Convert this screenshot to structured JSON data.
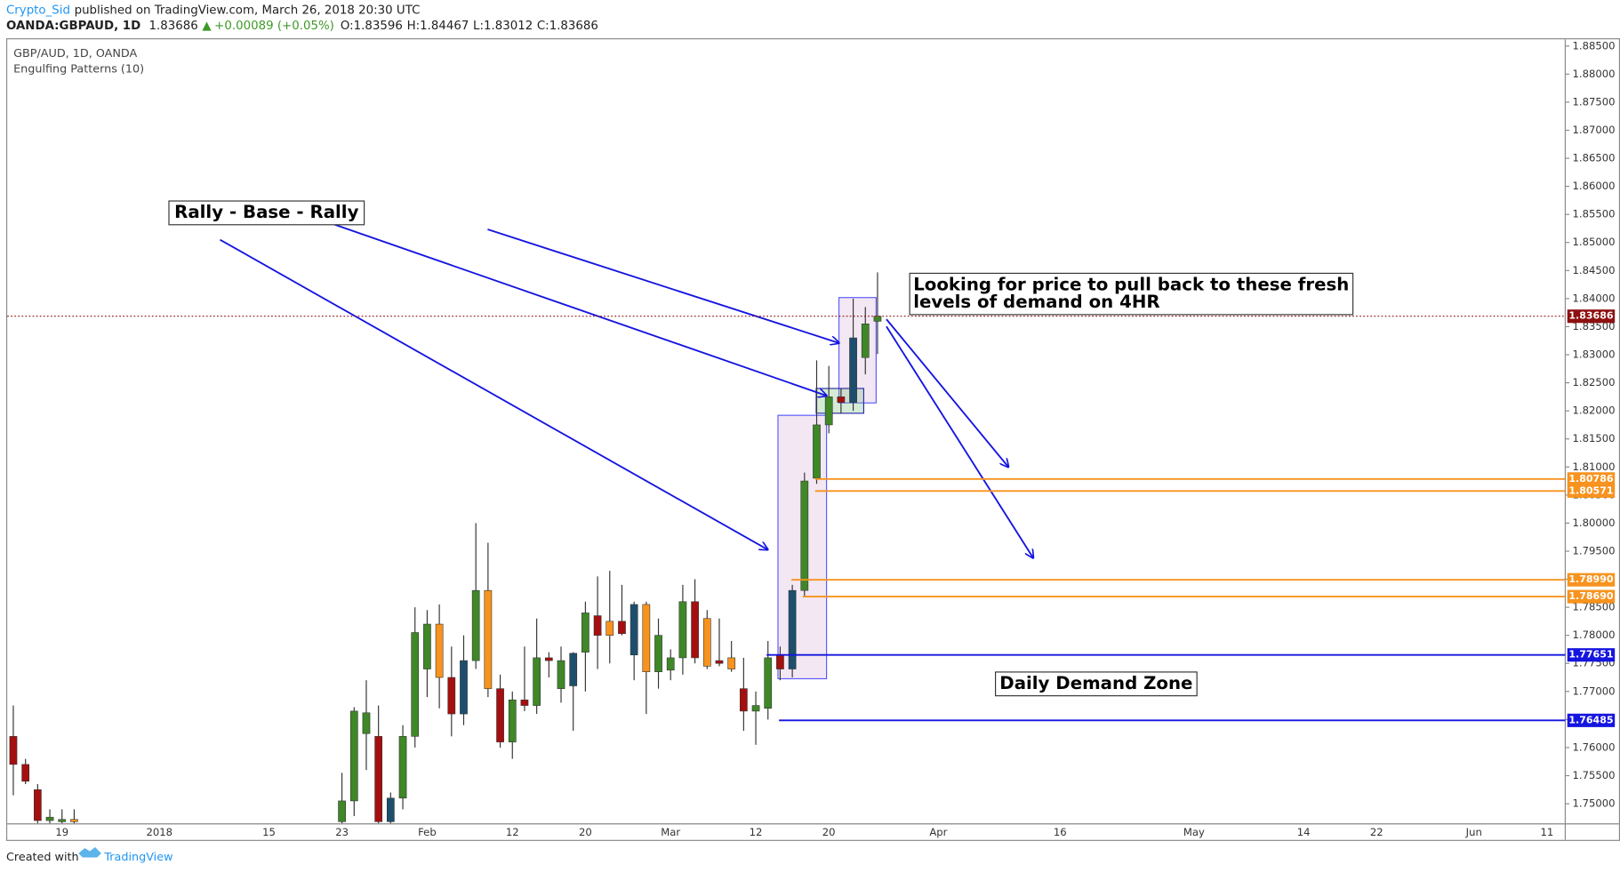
{
  "chart_data": {
    "type": "candlestick",
    "info": {
      "publisher": "Crypto_Sid",
      "published": "published on TradingView.com, March 26, 2018 20:30 UTC",
      "symbol": "OANDA:GBPAUD, 1D",
      "last": "1.83686",
      "change": "+0.00089 (+0.05%)",
      "ohlc": [
        "O:1.83596",
        "H:1.84467",
        "L:1.83012",
        "C:1.83686"
      ]
    },
    "title": "GBP/AUD, 1D, OANDA",
    "subtitle": "Engulfing Patterns (10)",
    "annotations": [
      "Rally - Base - Rally",
      "Looking for price to pull back to these fresh",
      "levels of demand on 4HR",
      "Daily Demand Zone"
    ],
    "footer": {
      "created": "Created with",
      "brand": "TradingView"
    },
    "ylim": [
      1.7465,
      1.8862
    ],
    "yticks": [
      {
        "value": 1.75,
        "label": "1.75000"
      },
      {
        "value": 1.755,
        "label": "1.75500"
      },
      {
        "value": 1.76,
        "label": "1.76000"
      },
      {
        "value": 1.765,
        "label": "1.76500"
      },
      {
        "value": 1.77,
        "label": "1.77000"
      },
      {
        "value": 1.775,
        "label": "1.77500"
      },
      {
        "value": 1.78,
        "label": "1.78000"
      },
      {
        "value": 1.785,
        "label": "1.78500"
      },
      {
        "value": 1.79,
        "label": "1.79000"
      },
      {
        "value": 1.795,
        "label": "1.79500"
      },
      {
        "value": 1.8,
        "label": "1.80000"
      },
      {
        "value": 1.805,
        "label": "1.80500"
      },
      {
        "value": 1.81,
        "label": "1.81000"
      },
      {
        "value": 1.815,
        "label": "1.81500"
      },
      {
        "value": 1.82,
        "label": "1.82000"
      },
      {
        "value": 1.825,
        "label": "1.82500"
      },
      {
        "value": 1.83,
        "label": "1.83000"
      },
      {
        "value": 1.835,
        "label": "1.83500"
      },
      {
        "value": 1.84,
        "label": "1.84000"
      },
      {
        "value": 1.845,
        "label": "1.84500"
      },
      {
        "value": 1.85,
        "label": "1.85000"
      },
      {
        "value": 1.855,
        "label": "1.85500"
      },
      {
        "value": 1.86,
        "label": "1.86000"
      },
      {
        "value": 1.865,
        "label": "1.86500"
      },
      {
        "value": 1.87,
        "label": "1.87000"
      },
      {
        "value": 1.875,
        "label": "1.87500"
      },
      {
        "value": 1.88,
        "label": "1.88000"
      },
      {
        "value": 1.885,
        "label": "1.88500"
      }
    ],
    "levels": [
      {
        "value": 1.80786,
        "label": "1.80786",
        "color": "#f7931e"
      },
      {
        "value": 1.80571,
        "label": "1.80571",
        "color": "#f7931e"
      },
      {
        "value": 1.7899,
        "label": "1.78990",
        "color": "#f7931e"
      },
      {
        "value": 1.7869,
        "label": "1.78690",
        "color": "#f7931e"
      },
      {
        "value": 1.77651,
        "label": "1.77651",
        "color": "#1515e0"
      },
      {
        "value": 1.76485,
        "label": "1.76485",
        "color": "#1515e0"
      }
    ],
    "last_price": {
      "value": 1.83686,
      "label": "1.83686",
      "color": "#8e1010"
    },
    "categories": [
      null,
      null,
      null,
      null,
      "19",
      null,
      null,
      null,
      null,
      null,
      null,
      null,
      "2018",
      null,
      null,
      null,
      null,
      null,
      null,
      null,
      null,
      "15",
      null,
      null,
      null,
      null,
      null,
      "23",
      null,
      null,
      null,
      null,
      null,
      null,
      "Feb",
      null,
      null,
      null,
      null,
      null,
      null,
      "12",
      null,
      null,
      null,
      null,
      null,
      "20",
      null,
      null,
      null,
      null,
      null,
      null,
      "Mar",
      null,
      null,
      null,
      null,
      null,
      null,
      "12",
      null,
      null,
      null,
      null,
      null,
      "20",
      null,
      null,
      null,
      null,
      null,
      null,
      null,
      null,
      "Apr",
      null,
      null,
      null,
      null,
      null,
      null,
      null,
      null,
      null,
      "16",
      null,
      null,
      null,
      null,
      null,
      null,
      null,
      null,
      null,
      null,
      "May",
      null,
      null,
      null,
      null,
      null,
      null,
      null,
      null,
      "14",
      null,
      null,
      null,
      null,
      null,
      "22",
      null,
      null,
      null,
      null,
      null,
      null,
      null,
      "Jun",
      null,
      null,
      null,
      null,
      null,
      "11",
      null
    ],
    "open": [
      1.762,
      1.757,
      1.7525,
      1.747,
      1.7468,
      1.7472,
      null,
      null,
      null,
      null,
      null,
      null,
      null,
      null,
      null,
      null,
      null,
      null,
      null,
      null,
      null,
      null,
      null,
      null,
      null,
      null,
      null,
      1.7468,
      1.7505,
      1.7625,
      1.762,
      1.7468,
      1.751,
      1.762,
      1.774,
      1.782,
      1.7725,
      1.766,
      1.7755,
      1.788,
      1.7705,
      1.761,
      1.7685,
      1.7675,
      1.776,
      1.7705,
      1.771,
      1.777,
      1.7835,
      1.7825,
      1.7825,
      1.7765,
      1.7855,
      1.7735,
      1.7738,
      1.776,
      1.786,
      1.783,
      1.7755,
      1.776,
      1.7705,
      1.7665,
      1.767,
      1.7765,
      1.774,
      1.788,
      1.808,
      1.8175,
      1.8225,
      1.8215,
      1.8295,
      1.83596,
      null,
      null,
      null,
      null,
      null,
      null,
      null,
      null,
      null,
      null,
      null,
      null,
      null,
      null,
      null,
      null,
      null,
      null,
      null,
      null,
      null,
      null,
      null,
      null,
      null,
      null,
      null,
      null,
      null,
      null,
      null,
      null,
      null,
      null,
      null,
      null,
      null,
      null,
      null,
      null,
      null,
      null,
      null,
      null,
      null,
      null,
      null,
      null,
      null,
      null,
      null,
      null,
      null,
      null,
      null,
      null
    ],
    "high": [
      1.7675,
      1.758,
      1.7535,
      1.749,
      1.749,
      1.749,
      null,
      null,
      null,
      null,
      null,
      null,
      null,
      null,
      null,
      null,
      null,
      null,
      null,
      null,
      null,
      null,
      null,
      null,
      null,
      null,
      null,
      1.7555,
      1.7672,
      1.772,
      1.7675,
      1.752,
      1.764,
      1.785,
      1.7845,
      1.7855,
      1.778,
      1.78,
      1.8,
      1.7965,
      1.773,
      1.77,
      1.778,
      1.783,
      1.777,
      1.778,
      1.777,
      1.786,
      1.7905,
      1.7915,
      1.789,
      1.786,
      1.786,
      1.783,
      1.7775,
      1.789,
      1.79,
      1.7845,
      1.783,
      1.779,
      1.776,
      1.77,
      1.779,
      1.778,
      1.789,
      1.809,
      1.829,
      1.828,
      1.824,
      1.84,
      1.8385,
      1.84467,
      null,
      null,
      null,
      null,
      null,
      null,
      null,
      null,
      null,
      null,
      null,
      null,
      null,
      null,
      null,
      null,
      null,
      null,
      null,
      null,
      null,
      null,
      null,
      null,
      null,
      null,
      null,
      null,
      null,
      null,
      null,
      null,
      null,
      null,
      null,
      null,
      null,
      null,
      null,
      null,
      null,
      null,
      null,
      null,
      null,
      null,
      null,
      null,
      null,
      null,
      null,
      null,
      null,
      null,
      null,
      null
    ],
    "low": [
      1.7515,
      1.7535,
      1.7465,
      1.7465,
      1.7465,
      1.7465,
      null,
      null,
      null,
      null,
      null,
      null,
      null,
      null,
      null,
      null,
      null,
      null,
      null,
      null,
      null,
      null,
      null,
      null,
      null,
      null,
      null,
      1.7465,
      1.7478,
      1.756,
      1.7465,
      1.7465,
      1.749,
      1.76,
      1.769,
      1.767,
      1.762,
      1.764,
      1.774,
      1.769,
      1.76,
      1.758,
      1.7665,
      1.766,
      1.7725,
      1.768,
      1.763,
      1.77,
      1.774,
      1.775,
      1.78,
      1.772,
      1.766,
      1.7705,
      1.772,
      1.773,
      1.775,
      1.774,
      1.7745,
      1.7735,
      1.763,
      1.7605,
      1.765,
      1.772,
      1.7725,
      1.787,
      1.807,
      1.816,
      1.8195,
      1.82,
      1.8265,
      1.83012,
      null,
      null,
      null,
      null,
      null,
      null,
      null,
      null,
      null,
      null,
      null,
      null,
      null,
      null,
      null,
      null,
      null,
      null,
      null,
      null,
      null,
      null,
      null,
      null,
      null,
      null,
      null,
      null,
      null,
      null,
      null,
      null,
      null,
      null,
      null,
      null,
      null,
      null,
      null,
      null,
      null,
      null,
      null,
      null,
      null,
      null,
      null,
      null,
      null,
      null,
      null,
      null,
      null,
      null,
      null,
      null
    ],
    "close": [
      1.757,
      1.754,
      1.747,
      1.7476,
      1.7472,
      1.7468,
      null,
      null,
      null,
      null,
      null,
      null,
      null,
      null,
      null,
      null,
      null,
      null,
      null,
      null,
      null,
      null,
      null,
      null,
      null,
      null,
      null,
      1.7505,
      1.7665,
      1.7662,
      1.7468,
      1.751,
      1.762,
      1.7805,
      1.782,
      1.7725,
      1.766,
      1.7755,
      1.788,
      1.7705,
      1.761,
      1.7685,
      1.7675,
      1.776,
      1.7755,
      1.7755,
      1.7768,
      1.784,
      1.78,
      1.78,
      1.7803,
      1.7855,
      1.7735,
      1.78,
      1.776,
      1.786,
      1.776,
      1.7745,
      1.775,
      1.774,
      1.7665,
      1.7675,
      1.776,
      1.774,
      1.788,
      1.8075,
      1.8175,
      1.8225,
      1.8215,
      1.833,
      1.8355,
      1.83686,
      null,
      null,
      null,
      null,
      null,
      null,
      null,
      null,
      null,
      null,
      null,
      null,
      null,
      null,
      null,
      null,
      null,
      null,
      null,
      null,
      null,
      null,
      null,
      null,
      null,
      null,
      null,
      null,
      null,
      null,
      null,
      null,
      null,
      null,
      null,
      null,
      null,
      null,
      null,
      null,
      null,
      null,
      null,
      null,
      null,
      null,
      null,
      null,
      null,
      null,
      null,
      null,
      null,
      null,
      null,
      null
    ],
    "colors": [
      "#a50f0f",
      "#a50f0f",
      "#a50f0f",
      "#3f8727",
      "#3f8727",
      "#f7931e",
      null,
      null,
      null,
      null,
      null,
      null,
      null,
      null,
      null,
      null,
      null,
      null,
      null,
      null,
      null,
      null,
      null,
      null,
      null,
      null,
      null,
      "#3f8727",
      "#3f8727",
      "#3f8727",
      "#a50f0f",
      "#1d4e6e",
      "#3f8727",
      "#3f8727",
      "#3f8727",
      "#f7931e",
      "#a50f0f",
      "#1d4e6e",
      "#3f8727",
      "#f7931e",
      "#a50f0f",
      "#3f8727",
      "#a50f0f",
      "#3f8727",
      "#a50f0f",
      "#3f8727",
      "#1d4e6e",
      "#3f8727",
      "#a50f0f",
      "#f7931e",
      "#a50f0f",
      "#1d4e6e",
      "#f7931e",
      "#3f8727",
      "#3f8727",
      "#3f8727",
      "#a50f0f",
      "#f7931e",
      "#a50f0f",
      "#f7931e",
      "#a50f0f",
      "#3f8727",
      "#3f8727",
      "#a50f0f",
      "#1d4e6e",
      "#3f8727",
      "#3f8727",
      "#3f8727",
      "#a50f0f",
      "#1d4e6e",
      "#3f8727",
      "#3f8727",
      null,
      null,
      null,
      null,
      null,
      null,
      null,
      null,
      null,
      null,
      null,
      null,
      null,
      null,
      null,
      null,
      null,
      null,
      null,
      null,
      null,
      null,
      null,
      null,
      null,
      null,
      null,
      null,
      null,
      null,
      null,
      null,
      null,
      null,
      null,
      null,
      null,
      null,
      null,
      null,
      null,
      null,
      null,
      null,
      null,
      null,
      null,
      null,
      null,
      null,
      null,
      null,
      null,
      null,
      null,
      null
    ]
  }
}
